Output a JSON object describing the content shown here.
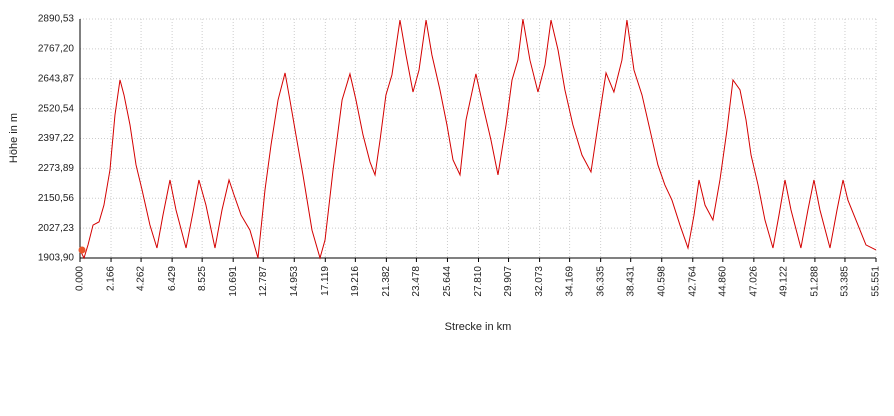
{
  "chart_data": {
    "type": "line",
    "xlabel": "Strecke in km",
    "ylabel": "Höhe in m",
    "x": [
      0,
      0.28,
      0.56,
      0.91,
      1.33,
      1.67,
      2.09,
      2.44,
      2.79,
      3.07,
      3.49,
      3.91,
      4.33,
      4.88,
      5.37,
      5.79,
      6.28,
      6.7,
      7.4,
      7.89,
      8.3,
      8.79,
      9.42,
      9.91,
      10.4,
      10.75,
      11.24,
      11.86,
      12.42,
      12.91,
      13.33,
      13.82,
      14.31,
      14.65,
      15.07,
      15.56,
      16.19,
      16.75,
      17.1,
      17.66,
      18.29,
      18.84,
      19.26,
      19.75,
      20.24,
      20.59,
      20.94,
      21.35,
      21.77,
      22.33,
      22.75,
      23.24,
      23.66,
      24.15,
      24.56,
      25.12,
      25.61,
      26.03,
      26.52,
      26.94,
      27.63,
      28.19,
      28.68,
      29.17,
      29.73,
      30.15,
      30.56,
      30.91,
      31.4,
      31.96,
      32.45,
      32.87,
      33.36,
      33.84,
      34.4,
      35.03,
      35.66,
      36.15,
      36.71,
      37.26,
      37.82,
      38.17,
      38.66,
      39.22,
      39.78,
      40.33,
      40.82,
      41.31,
      41.87,
      42.43,
      42.85,
      43.2,
      43.62,
      44.17,
      44.66,
      45.15,
      45.57,
      46.06,
      46.48,
      46.83,
      47.32,
      47.8,
      48.36,
      48.78,
      49.2,
      49.62,
      50.31,
      50.8,
      51.22,
      51.64,
      52.34,
      52.83,
      53.25,
      53.59,
      54.15,
      54.85,
      55.55
    ],
    "series": [
      {
        "name": "Höhe",
        "color": "#d40000",
        "values": [
          1937,
          1904,
          1958,
          2040,
          2053,
          2122,
          2267,
          2494,
          2639,
          2577,
          2453,
          2288,
          2185,
          2040,
          1945,
          2081,
          2226,
          2102,
          1945,
          2094,
          2226,
          2122,
          1945,
          2102,
          2226,
          2164,
          2081,
          2019,
          1904,
          2185,
          2370,
          2556,
          2668,
          2556,
          2412,
          2247,
          2019,
          1904,
          1978,
          2267,
          2556,
          2664,
          2556,
          2412,
          2300,
          2247,
          2391,
          2577,
          2660,
          2886,
          2742,
          2589,
          2680,
          2886,
          2742,
          2598,
          2453,
          2309,
          2247,
          2474,
          2664,
          2515,
          2391,
          2247,
          2453,
          2639,
          2721,
          2890,
          2721,
          2589,
          2701,
          2886,
          2763,
          2598,
          2453,
          2329,
          2259,
          2453,
          2668,
          2589,
          2721,
          2886,
          2680,
          2577,
          2432,
          2288,
          2205,
          2143,
          2040,
          1945,
          2081,
          2226,
          2122,
          2061,
          2226,
          2432,
          2639,
          2598,
          2474,
          2329,
          2205,
          2061,
          1945,
          2081,
          2226,
          2102,
          1945,
          2102,
          2226,
          2102,
          1945,
          2102,
          2226,
          2143,
          2061,
          1958,
          1937
        ]
      }
    ],
    "xlim": [
      0,
      55.551
    ],
    "xticks": [
      {
        "value": 0,
        "label": "0.000"
      },
      {
        "value": 2.166,
        "label": "2.166"
      },
      {
        "value": 4.262,
        "label": "4.262"
      },
      {
        "value": 6.429,
        "label": "6.429"
      },
      {
        "value": 8.525,
        "label": "8.525"
      },
      {
        "value": 10.691,
        "label": "10.691"
      },
      {
        "value": 12.787,
        "label": "12.787"
      },
      {
        "value": 14.953,
        "label": "14.953"
      },
      {
        "value": 17.119,
        "label": "17.119"
      },
      {
        "value": 19.216,
        "label": "19.216"
      },
      {
        "value": 21.382,
        "label": "21.382"
      },
      {
        "value": 23.478,
        "label": "23.478"
      },
      {
        "value": 25.644,
        "label": "25.644"
      },
      {
        "value": 27.81,
        "label": "27.810"
      },
      {
        "value": 29.907,
        "label": "29.907"
      },
      {
        "value": 32.073,
        "label": "32.073"
      },
      {
        "value": 34.169,
        "label": "34.169"
      },
      {
        "value": 36.335,
        "label": "36.335"
      },
      {
        "value": 38.431,
        "label": "38.431"
      },
      {
        "value": 40.598,
        "label": "40.598"
      },
      {
        "value": 42.764,
        "label": "42.764"
      },
      {
        "value": 44.86,
        "label": "44.860"
      },
      {
        "value": 47.026,
        "label": "47.026"
      },
      {
        "value": 49.122,
        "label": "49.122"
      },
      {
        "value": 51.288,
        "label": "51.288"
      },
      {
        "value": 53.385,
        "label": "53.385"
      },
      {
        "value": 55.551,
        "label": "55.551"
      }
    ],
    "ylim": [
      1903.9,
      2890.53
    ],
    "yticks": [
      {
        "value": 1903.9,
        "label": "1903,90"
      },
      {
        "value": 2027.23,
        "label": "2027,23"
      },
      {
        "value": 2150.56,
        "label": "2150,56"
      },
      {
        "value": 2273.89,
        "label": "2273,89"
      },
      {
        "value": 2397.22,
        "label": "2397,22"
      },
      {
        "value": 2520.54,
        "label": "2520,54"
      },
      {
        "value": 2643.87,
        "label": "2643,87"
      },
      {
        "value": 2767.2,
        "label": "2767,20"
      },
      {
        "value": 2890.53,
        "label": "2890,53"
      }
    ],
    "grid": true
  }
}
